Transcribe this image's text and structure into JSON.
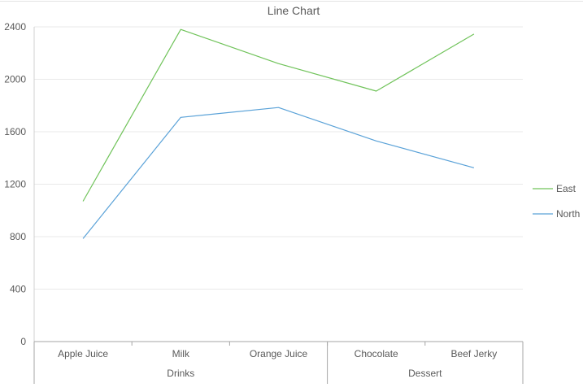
{
  "chart_data": {
    "type": "line",
    "title": "Line Chart",
    "categories": [
      "Apple Juice",
      "Milk",
      "Orange Juice",
      "Chocolate",
      "Beef Jerky"
    ],
    "groups": [
      {
        "label": "Drinks",
        "categories": [
          "Apple Juice",
          "Milk",
          "Orange Juice"
        ]
      },
      {
        "label": "Dessert",
        "categories": [
          "Chocolate",
          "Beef Jerky"
        ]
      }
    ],
    "series": [
      {
        "name": "East",
        "color": "#70c35a",
        "values": [
          1070,
          2380,
          2120,
          1910,
          2345
        ]
      },
      {
        "name": "North",
        "color": "#5aa2d8",
        "values": [
          785,
          1710,
          1785,
          1530,
          1325
        ]
      }
    ],
    "ylim": [
      0,
      2400
    ],
    "yticks": [
      "0",
      "400",
      "800",
      "1200",
      "1600",
      "2000",
      "2400"
    ],
    "grid": true,
    "legend_position": "right"
  }
}
